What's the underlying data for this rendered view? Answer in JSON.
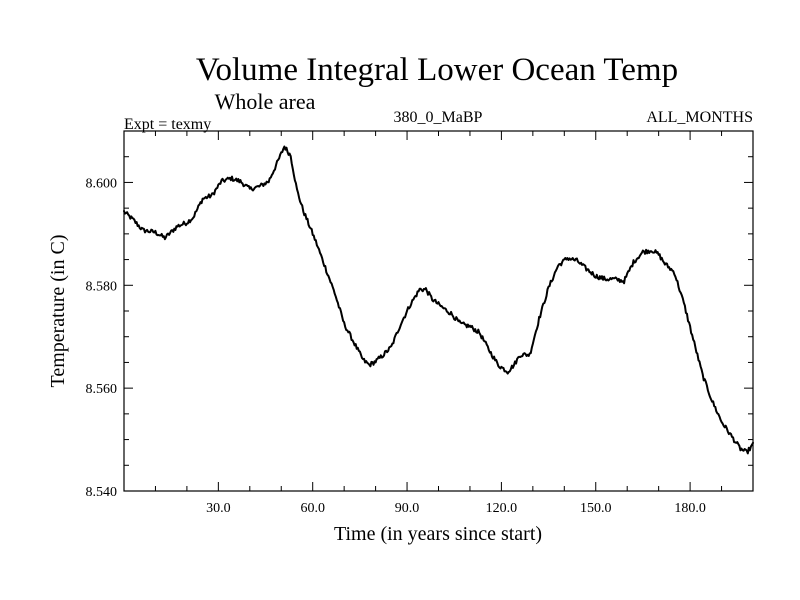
{
  "chart_data": {
    "type": "line",
    "title": "Volume Integral Lower Ocean Temp",
    "subtitle": "Whole area",
    "left_label": "Expt = texmy",
    "center_label": "380_0_MaBP",
    "right_label": "ALL_MONTHS",
    "xlabel": "Time (in years since start)",
    "ylabel": "Temperature (in C)",
    "xlim": [
      0,
      200
    ],
    "ylim": [
      8.54,
      8.61
    ],
    "x_ticks": [
      30,
      60,
      90,
      120,
      150,
      180
    ],
    "x_tick_labels": [
      "30.0",
      "60.0",
      "90.0",
      "120.0",
      "150.0",
      "180.0"
    ],
    "y_ticks": [
      8.54,
      8.56,
      8.58,
      8.6
    ],
    "y_tick_labels": [
      "8.540",
      "8.560",
      "8.580",
      "8.600"
    ],
    "grid": false,
    "line_color": "#000000",
    "series": [
      {
        "name": "Volume integral lower ocean temperature",
        "x": [
          0,
          3,
          6,
          10,
          13,
          17,
          20,
          22,
          25,
          28,
          31,
          34,
          37,
          40,
          43,
          46,
          49,
          51,
          53,
          55,
          57,
          59,
          61,
          64,
          67,
          70,
          73,
          76,
          78,
          80,
          82,
          85,
          88,
          91,
          94,
          96,
          98,
          101,
          104,
          107,
          110,
          113,
          116,
          119,
          122,
          124,
          126,
          129,
          132,
          135,
          138,
          141,
          144,
          147,
          150,
          153,
          156,
          159,
          162,
          165,
          168,
          170,
          172,
          175,
          178,
          181,
          184,
          187,
          190,
          193,
          196,
          198,
          200
        ],
        "y": [
          8.5943,
          8.5927,
          8.5907,
          8.5903,
          8.5892,
          8.5915,
          8.5922,
          8.5932,
          8.5968,
          8.5975,
          8.6002,
          8.6008,
          8.6002,
          8.5987,
          8.5992,
          8.6002,
          8.6042,
          8.607,
          8.6052,
          8.5985,
          8.5945,
          8.5915,
          8.5885,
          8.5835,
          8.5785,
          8.5725,
          8.569,
          8.5655,
          8.5645,
          8.5652,
          8.5662,
          8.568,
          8.5725,
          8.5762,
          8.5792,
          8.5792,
          8.5773,
          8.5758,
          8.5745,
          8.5725,
          8.572,
          8.5708,
          8.5675,
          8.5645,
          8.5632,
          8.5645,
          8.5665,
          8.5665,
          8.5735,
          8.5795,
          8.5838,
          8.5853,
          8.5848,
          8.5832,
          8.5818,
          8.5812,
          8.5812,
          8.5808,
          8.5845,
          8.5865,
          8.5868,
          8.586,
          8.5842,
          8.5825,
          8.5765,
          8.5695,
          8.5625,
          8.5575,
          8.5535,
          8.5508,
          8.5482,
          8.5475,
          8.549
        ]
      }
    ]
  }
}
